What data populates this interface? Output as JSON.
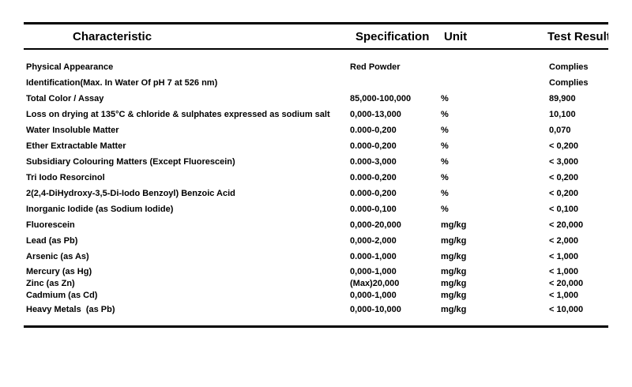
{
  "table": {
    "headers": {
      "characteristic": "Characteristic",
      "specification": "Specification",
      "unit": "Unit",
      "test_results": "Test Results"
    },
    "rows": [
      {
        "characteristic": "Physical Appearance",
        "specification": "Red Powder",
        "unit": "",
        "result": "Complies"
      },
      {
        "characteristic": "Identification(Max. In Water Of pH 7 at 526 nm)",
        "specification": "",
        "unit": "",
        "result": "Complies"
      },
      {
        "characteristic": "Total Color / Assay",
        "specification": "85,000-100,000",
        "unit": "%",
        "result": "89,900"
      },
      {
        "characteristic": "Loss on drying at 135°C & chloride & sulphates expressed as sodium salt",
        "specification": "0,000-13,000",
        "unit": "%",
        "result": "10,100"
      },
      {
        "characteristic": "Water Insoluble Matter",
        "specification": "0.000-0,200",
        "unit": "%",
        "result": "0,070"
      },
      {
        "characteristic": "Ether Extractable Matter",
        "specification": "0.000-0,200",
        "unit": "%",
        "result": "< 0,200"
      },
      {
        "characteristic": "Subsidiary Colouring Matters (Except Fluorescein)",
        "specification": "0.000-3,000",
        "unit": "%",
        "result": "< 3,000"
      },
      {
        "characteristic": "Tri Iodo Resorcinol",
        "specification": "0.000-0,200",
        "unit": "%",
        "result": "< 0,200"
      },
      {
        "characteristic": "2(2,4-DiHydroxy-3,5-Di-Iodo Benzoyl) Benzoic Acid",
        "specification": "0.000-0,200",
        "unit": "%",
        "result": "< 0,200"
      },
      {
        "characteristic": "Inorganic Iodide (as Sodium Iodide)",
        "specification": "0.000-0,100",
        "unit": "%",
        "result": "< 0,100"
      },
      {
        "characteristic": "Fluorescein",
        "specification": "0,000-20,000",
        "unit": "mg/kg",
        "result": "< 20,000"
      },
      {
        "characteristic": "Lead (as Pb)",
        "specification": "0,000-2,000",
        "unit": "mg/kg",
        "result": "< 2,000"
      },
      {
        "characteristic": "Arsenic (as As)",
        "specification": "0.000-1,000",
        "unit": "mg/kg",
        "result": "< 1,000"
      },
      {
        "characteristic": "Mercury (as Hg)",
        "specification": "0,000-1,000",
        "unit": "mg/kg",
        "result": "< 1,000"
      },
      {
        "characteristic": "Zinc (as Zn)",
        "specification": "(Max)20,000",
        "unit": "mg/kg",
        "result": "< 20,000"
      },
      {
        "characteristic": "Cadmium (as Cd)",
        "specification": "0,000-1,000",
        "unit": "mg/kg",
        "result": "< 1,000"
      },
      {
        "characteristic": "Heavy Metals  (as Pb)",
        "specification": "0,000-10,000",
        "unit": "mg/kg",
        "result": "< 10,000"
      }
    ]
  }
}
